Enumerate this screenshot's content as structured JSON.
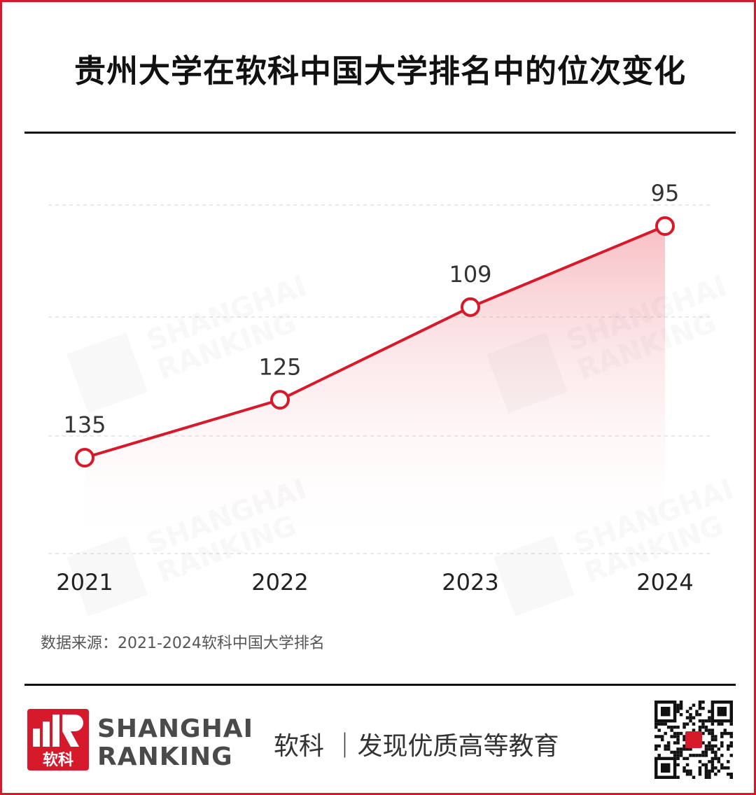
{
  "title": "贵州大学在软科中国大学排名中的位次变化",
  "source_note": "数据来源：2021-2024软科中国大学排名",
  "brand": {
    "logo_text": "软科",
    "name_line1": "SHANGHAI",
    "name_line2": "RANKING"
  },
  "slogan": "软科 ｜发现优质高等教育",
  "colors": {
    "accent": "#d71a2b",
    "text": "#111111"
  },
  "chart_data": {
    "type": "line",
    "x": [
      "2021",
      "2022",
      "2023",
      "2024"
    ],
    "series": [
      {
        "values": [
          135,
          125,
          109,
          95
        ]
      }
    ],
    "data_labels": [
      "135",
      "125",
      "109",
      "95"
    ],
    "title": "贵州大学在软科中国大学排名中的位次变化",
    "y_inverted": true,
    "ylim": [
      145,
      90
    ],
    "grid": true,
    "area_fill": true
  }
}
